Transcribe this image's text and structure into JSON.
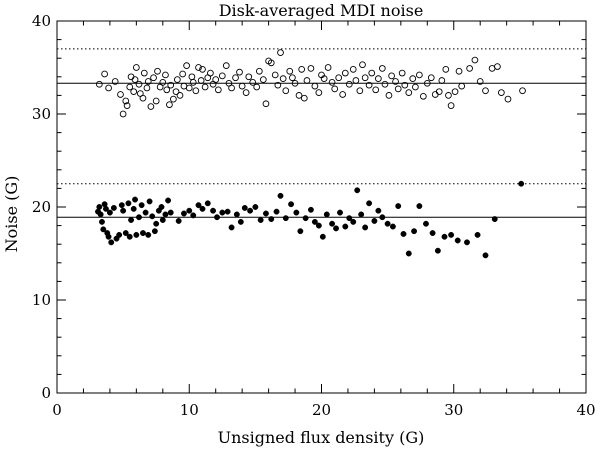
{
  "chart_data": {
    "type": "scatter",
    "title": "Disk-averaged MDI noise",
    "xlabel": "Unsigned flux density (G)",
    "ylabel": "Noise (G)",
    "xlim": [
      0,
      40
    ],
    "ylim": [
      0,
      40
    ],
    "x_ticks": [
      0,
      10,
      20,
      30,
      40
    ],
    "y_ticks": [
      0,
      10,
      20,
      30,
      40
    ],
    "grid": false,
    "reference_lines": [
      {
        "y": 37.0,
        "style": "dotted"
      },
      {
        "y": 33.3,
        "style": "solid"
      },
      {
        "y": 22.5,
        "style": "dotted"
      },
      {
        "y": 18.9,
        "style": "solid"
      }
    ],
    "series": [
      {
        "marker": "open-circle",
        "points": [
          [
            3.2,
            33.2
          ],
          [
            3.6,
            34.3
          ],
          [
            3.9,
            32.8
          ],
          [
            4.4,
            33.5
          ],
          [
            4.8,
            32.1
          ],
          [
            5.0,
            30.0
          ],
          [
            5.2,
            31.4
          ],
          [
            5.3,
            30.9
          ],
          [
            5.5,
            32.9
          ],
          [
            5.6,
            34.0
          ],
          [
            5.8,
            32.4
          ],
          [
            5.9,
            33.7
          ],
          [
            6.0,
            35.0
          ],
          [
            6.2,
            33.2
          ],
          [
            6.3,
            32.2
          ],
          [
            6.5,
            31.7
          ],
          [
            6.6,
            34.4
          ],
          [
            6.8,
            32.8
          ],
          [
            6.9,
            33.5
          ],
          [
            7.1,
            30.8
          ],
          [
            7.3,
            33.9
          ],
          [
            7.5,
            31.4
          ],
          [
            7.6,
            34.6
          ],
          [
            7.8,
            32.9
          ],
          [
            8.0,
            33.4
          ],
          [
            8.2,
            34.2
          ],
          [
            8.3,
            32.6
          ],
          [
            8.5,
            31.0
          ],
          [
            8.6,
            33.1
          ],
          [
            8.8,
            31.6
          ],
          [
            9.0,
            32.4
          ],
          [
            9.1,
            33.7
          ],
          [
            9.3,
            32.0
          ],
          [
            9.5,
            34.3
          ],
          [
            9.6,
            33.0
          ],
          [
            9.8,
            35.2
          ],
          [
            10.0,
            32.8
          ],
          [
            10.2,
            34.0
          ],
          [
            10.3,
            33.4
          ],
          [
            10.5,
            32.5
          ],
          [
            10.7,
            35.0
          ],
          [
            10.9,
            33.6
          ],
          [
            11.0,
            34.8
          ],
          [
            11.2,
            32.9
          ],
          [
            11.4,
            33.9
          ],
          [
            11.6,
            34.4
          ],
          [
            11.8,
            33.2
          ],
          [
            12.0,
            33.7
          ],
          [
            12.2,
            32.6
          ],
          [
            12.5,
            34.1
          ],
          [
            12.8,
            35.2
          ],
          [
            13.0,
            33.3
          ],
          [
            13.2,
            32.8
          ],
          [
            13.5,
            33.9
          ],
          [
            13.8,
            34.5
          ],
          [
            14.0,
            33.0
          ],
          [
            14.3,
            32.3
          ],
          [
            14.5,
            34.0
          ],
          [
            14.8,
            33.4
          ],
          [
            15.1,
            32.9
          ],
          [
            15.3,
            34.6
          ],
          [
            15.6,
            33.7
          ],
          [
            15.8,
            31.1
          ],
          [
            16.0,
            35.7
          ],
          [
            16.2,
            35.5
          ],
          [
            16.5,
            34.2
          ],
          [
            16.7,
            33.1
          ],
          [
            16.9,
            36.6
          ],
          [
            17.1,
            33.8
          ],
          [
            17.3,
            32.5
          ],
          [
            17.6,
            34.6
          ],
          [
            17.8,
            33.9
          ],
          [
            18.0,
            33.3
          ],
          [
            18.3,
            32.0
          ],
          [
            18.5,
            34.8
          ],
          [
            18.7,
            31.7
          ],
          [
            18.9,
            33.6
          ],
          [
            19.2,
            34.9
          ],
          [
            19.5,
            33.0
          ],
          [
            19.8,
            32.3
          ],
          [
            20.0,
            34.2
          ],
          [
            20.2,
            33.8
          ],
          [
            20.5,
            35.0
          ],
          [
            20.8,
            33.4
          ],
          [
            21.0,
            32.7
          ],
          [
            21.3,
            33.9
          ],
          [
            21.6,
            32.1
          ],
          [
            21.8,
            34.4
          ],
          [
            22.1,
            33.2
          ],
          [
            22.4,
            34.8
          ],
          [
            22.6,
            33.6
          ],
          [
            22.9,
            32.5
          ],
          [
            23.1,
            35.3
          ],
          [
            23.3,
            33.9
          ],
          [
            23.6,
            33.1
          ],
          [
            23.8,
            34.4
          ],
          [
            24.1,
            32.6
          ],
          [
            24.3,
            33.8
          ],
          [
            24.6,
            34.9
          ],
          [
            24.8,
            33.2
          ],
          [
            25.1,
            32.0
          ],
          [
            25.3,
            34.1
          ],
          [
            25.6,
            33.5
          ],
          [
            25.8,
            32.7
          ],
          [
            26.1,
            34.4
          ],
          [
            26.3,
            33.1
          ],
          [
            26.6,
            32.3
          ],
          [
            26.9,
            33.8
          ],
          [
            27.1,
            32.9
          ],
          [
            27.4,
            34.2
          ],
          [
            27.7,
            31.9
          ],
          [
            28.0,
            33.3
          ],
          [
            28.3,
            33.9
          ],
          [
            28.6,
            32.1
          ],
          [
            28.9,
            32.4
          ],
          [
            29.1,
            33.6
          ],
          [
            29.4,
            34.8
          ],
          [
            29.6,
            32.0
          ],
          [
            29.8,
            30.9
          ],
          [
            30.1,
            32.4
          ],
          [
            30.4,
            34.6
          ],
          [
            30.6,
            33.0
          ],
          [
            31.2,
            34.9
          ],
          [
            31.6,
            35.8
          ],
          [
            32.0,
            33.5
          ],
          [
            32.4,
            32.5
          ],
          [
            32.9,
            34.9
          ],
          [
            33.3,
            35.1
          ],
          [
            33.6,
            32.3
          ],
          [
            34.1,
            31.6
          ],
          [
            35.2,
            32.5
          ]
        ]
      },
      {
        "marker": "filled-circle",
        "points": [
          [
            3.1,
            19.5
          ],
          [
            3.2,
            20.0
          ],
          [
            3.3,
            19.2
          ],
          [
            3.4,
            18.4
          ],
          [
            3.5,
            17.6
          ],
          [
            3.6,
            20.3
          ],
          [
            3.7,
            19.8
          ],
          [
            3.8,
            17.2
          ],
          [
            3.9,
            16.8
          ],
          [
            4.0,
            19.4
          ],
          [
            4.1,
            16.2
          ],
          [
            4.3,
            19.9
          ],
          [
            4.5,
            16.6
          ],
          [
            4.7,
            17.0
          ],
          [
            4.9,
            20.2
          ],
          [
            5.0,
            19.6
          ],
          [
            5.2,
            17.2
          ],
          [
            5.4,
            20.4
          ],
          [
            5.5,
            16.8
          ],
          [
            5.6,
            18.6
          ],
          [
            5.8,
            19.8
          ],
          [
            5.9,
            20.8
          ],
          [
            6.0,
            17.0
          ],
          [
            6.2,
            18.9
          ],
          [
            6.4,
            20.2
          ],
          [
            6.5,
            17.2
          ],
          [
            6.7,
            19.4
          ],
          [
            6.9,
            17.0
          ],
          [
            7.0,
            20.6
          ],
          [
            7.2,
            19.0
          ],
          [
            7.4,
            17.4
          ],
          [
            7.5,
            18.2
          ],
          [
            7.7,
            19.6
          ],
          [
            7.9,
            20.0
          ],
          [
            8.0,
            18.6
          ],
          [
            8.2,
            19.2
          ],
          [
            8.4,
            20.7
          ],
          [
            8.6,
            19.4
          ],
          [
            9.2,
            18.5
          ],
          [
            9.6,
            19.3
          ],
          [
            10.0,
            19.6
          ],
          [
            10.3,
            19.1
          ],
          [
            10.7,
            20.2
          ],
          [
            11.0,
            19.8
          ],
          [
            11.4,
            20.4
          ],
          [
            11.8,
            19.6
          ],
          [
            12.1,
            18.9
          ],
          [
            12.5,
            19.4
          ],
          [
            12.9,
            19.5
          ],
          [
            13.2,
            17.8
          ],
          [
            13.6,
            19.2
          ],
          [
            13.9,
            18.4
          ],
          [
            14.2,
            19.9
          ],
          [
            14.6,
            19.6
          ],
          [
            15.0,
            20.0
          ],
          [
            15.4,
            18.6
          ],
          [
            15.8,
            19.3
          ],
          [
            16.2,
            18.7
          ],
          [
            16.6,
            19.5
          ],
          [
            16.9,
            21.2
          ],
          [
            17.3,
            18.8
          ],
          [
            17.7,
            20.3
          ],
          [
            18.1,
            19.4
          ],
          [
            18.4,
            17.4
          ],
          [
            18.8,
            18.8
          ],
          [
            19.2,
            19.7
          ],
          [
            19.5,
            18.4
          ],
          [
            19.8,
            18.0
          ],
          [
            20.1,
            16.8
          ],
          [
            20.4,
            19.2
          ],
          [
            20.8,
            18.2
          ],
          [
            21.1,
            17.7
          ],
          [
            21.4,
            19.4
          ],
          [
            21.8,
            17.9
          ],
          [
            22.1,
            18.8
          ],
          [
            22.4,
            18.4
          ],
          [
            22.7,
            21.8
          ],
          [
            23.0,
            19.2
          ],
          [
            23.3,
            17.8
          ],
          [
            23.6,
            20.4
          ],
          [
            24.0,
            18.5
          ],
          [
            24.3,
            19.6
          ],
          [
            24.6,
            18.9
          ],
          [
            25.0,
            18.2
          ],
          [
            25.4,
            17.9
          ],
          [
            25.8,
            20.1
          ],
          [
            26.2,
            17.1
          ],
          [
            26.6,
            15.0
          ],
          [
            27.0,
            17.4
          ],
          [
            27.4,
            20.1
          ],
          [
            27.9,
            18.2
          ],
          [
            28.4,
            17.2
          ],
          [
            28.8,
            15.3
          ],
          [
            29.3,
            16.8
          ],
          [
            29.8,
            17.0
          ],
          [
            30.3,
            16.4
          ],
          [
            31.0,
            16.2
          ],
          [
            31.8,
            17.0
          ],
          [
            32.4,
            14.8
          ],
          [
            33.1,
            18.7
          ],
          [
            35.1,
            22.5
          ]
        ]
      }
    ]
  }
}
